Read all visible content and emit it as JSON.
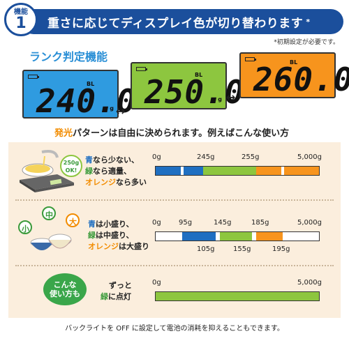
{
  "header": {
    "badge_label": "機能",
    "badge_number": "1",
    "title": "重さに応じてディスプレイ色が切り替わります",
    "asterisk": "*",
    "note": "*初期設定が必要です。"
  },
  "rank": {
    "title": "ランク判定機能",
    "displays": [
      {
        "value": "240.0",
        "bl": "BL",
        "unit": "g",
        "color": "#2f9be0"
      },
      {
        "value": "250.0",
        "bl": "BL",
        "unit": "g",
        "color": "#8dc63f"
      },
      {
        "value": "260.0",
        "bl": "BL",
        "color": "#f7941d"
      }
    ]
  },
  "pattern": {
    "hl1": "発光",
    "text": "パターンは自由に決められます。例えばこんな使い方"
  },
  "example1": {
    "bubble": "250g",
    "bubble_ok": "OK!",
    "lines": [
      {
        "color": "青",
        "rest": "なら少ない、"
      },
      {
        "color": "緑",
        "rest": "なら適量、"
      },
      {
        "color": "オレンジ",
        "rest": "なら多い"
      }
    ],
    "ticks_top": [
      "0g",
      "245g",
      "255g",
      "5,000g"
    ]
  },
  "example2": {
    "sizes": [
      "小",
      "中",
      "大"
    ],
    "lines": [
      {
        "color": "青",
        "rest": "は小盛り、"
      },
      {
        "color": "緑",
        "rest": "は中盛り、"
      },
      {
        "color": "オレンジ",
        "rest": "は大盛り"
      }
    ],
    "ticks_top": [
      "0g",
      "95g",
      "145g",
      "185g",
      "5,000g"
    ],
    "ticks_bottom": [
      "105g",
      "155g",
      "195g"
    ]
  },
  "example3": {
    "bubble_line1": "こんな",
    "bubble_line2": "使い方も",
    "text_line1": "ずっと",
    "text_color": "緑",
    "text_rest": "に点灯",
    "ticks_top": [
      "0g",
      "5,000g"
    ]
  },
  "footer": "バックライトを OFF に設定して電池の消耗を抑えることもできます。",
  "colors": {
    "blue": "#1f6fc1",
    "green": "#8dc63f",
    "orange": "#f7941d",
    "navy": "#1b4f9c"
  }
}
